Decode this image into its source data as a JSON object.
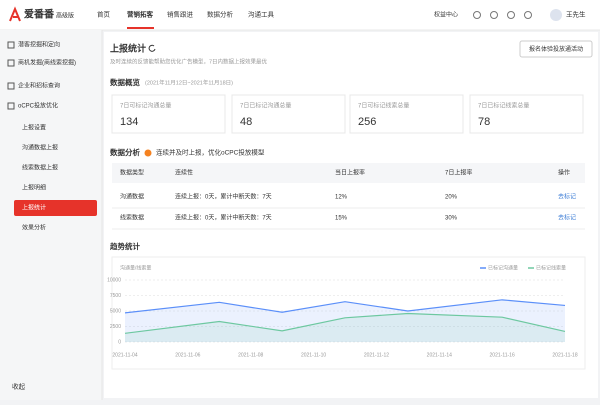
{
  "header": {
    "logo": "爱番番",
    "edition": "高级版",
    "nav": [
      "首页",
      "营销拓客",
      "销售跟进",
      "数据分析",
      "沟通工具"
    ],
    "benefits": "权益中心",
    "user": "王先生"
  },
  "sidebar": {
    "items": [
      "潜客挖掘和定向",
      "商机发掘(商线索挖掘)",
      "企业和招标查询",
      "oCPC投放优化"
    ],
    "subitems": [
      "上报设置",
      "沟通数据上报",
      "线索数据上报",
      "上报明细",
      "上报统计",
      "效果分析"
    ],
    "collapse": "收起"
  },
  "page": {
    "title": "上报统计",
    "subtitle": "及时连续的反馈能帮助您优化广告模型，7日内数据上报效果最优",
    "button": "报名体验投放通活动"
  },
  "overview": {
    "title": "数据概览",
    "range": "(2021年11月12日~2021年11月18日)",
    "cards": [
      {
        "label": "7日可标记沟通总量",
        "value": 134
      },
      {
        "label": "7日已标记沟通总量",
        "value": 48
      },
      {
        "label": "7日可标记线索总量",
        "value": 256
      },
      {
        "label": "7日已标记线索总量",
        "value": 78
      }
    ]
  },
  "analysis": {
    "title": "数据分析",
    "tip": "连续并及时上报，优化oCPC投放模型",
    "table": {
      "headers": [
        "数据类型",
        "连续性",
        "当日上报率",
        "7日上报率",
        "操作"
      ],
      "rows": [
        [
          "沟通数据",
          "连续上报：0天，累计中断天数：7天",
          "12%",
          "20%",
          "去标记"
        ],
        [
          "线索数据",
          "连续上报：0天，累计中断天数：7天",
          "15%",
          "30%",
          "去标记"
        ]
      ]
    }
  },
  "chart_data": {
    "type": "area",
    "title": "趋势统计",
    "ylabel": "沟通量/线索量",
    "legend": "top-right",
    "x": [
      "2021-11-04",
      "2021-11-07",
      "2021-11-09",
      "2021-11-11",
      "2021-11-13",
      "2021-11-16",
      "2021-11-18"
    ],
    "series": [
      {
        "name": "已标记沟通量",
        "color": "#5b8ff9",
        "values": [
          4700,
          6400,
          4800,
          6500,
          5000,
          6800,
          5900
        ]
      },
      {
        "name": "已标记线索量",
        "color": "#6dc8a0",
        "values": [
          1400,
          3300,
          1800,
          3900,
          4600,
          4000,
          1700
        ]
      }
    ],
    "ylim": [
      0,
      10000
    ],
    "yticks": [
      0,
      2500,
      5000,
      7500,
      10000
    ],
    "xlim": [
      "2021-11-04",
      "2021-11-18"
    ],
    "xticks": [
      "2021-11-04",
      "2021-11-06",
      "2021-11-08",
      "2021-11-10",
      "2021-11-12",
      "2021-11-14",
      "2021-11-16",
      "2021-11-18"
    ],
    "grid": true
  }
}
